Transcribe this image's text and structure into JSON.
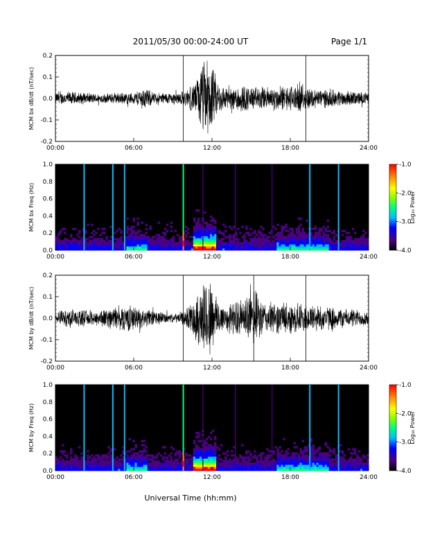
{
  "header": {
    "date_range": "2011/05/30  00:00-24:00 UT",
    "page": "Page 1/1"
  },
  "footer": {
    "xlabel": "Universal Time (hh:mm)"
  },
  "colorbar": {
    "label": "Log₁₀ Power",
    "ticks": [
      "-1.0",
      "-2.0",
      "-3.0",
      "-4.0"
    ],
    "range": [
      -4.0,
      -1.0
    ],
    "colormap": [
      "#000000",
      "#4b0082",
      "#0000ff",
      "#00bfff",
      "#00ff7f",
      "#7fff00",
      "#ffff00",
      "#ff8c00",
      "#ff0000"
    ]
  },
  "chart_data": [
    {
      "type": "line",
      "id": "bx-waveform",
      "ylabel": "MCM bx dB/dt (nT/sec)",
      "xlim": [
        0,
        24
      ],
      "ylim": [
        -0.2,
        0.2
      ],
      "x_ticks": [
        "00:00",
        "06:00",
        "12:00",
        "18:00",
        "24:00"
      ],
      "y_ticks": [
        "0.2",
        "0.1",
        "0.0",
        "-0.1",
        "-0.2"
      ],
      "vertical_lines_hours": [
        9.8,
        19.2
      ],
      "envelope": [
        {
          "x": 0.0,
          "a": 0.03
        },
        {
          "x": 1.0,
          "a": 0.035
        },
        {
          "x": 2.0,
          "a": 0.03
        },
        {
          "x": 3.0,
          "a": 0.025
        },
        {
          "x": 4.0,
          "a": 0.025
        },
        {
          "x": 5.0,
          "a": 0.03
        },
        {
          "x": 6.0,
          "a": 0.03
        },
        {
          "x": 6.8,
          "a": 0.06
        },
        {
          "x": 7.5,
          "a": 0.03
        },
        {
          "x": 9.0,
          "a": 0.03
        },
        {
          "x": 10.0,
          "a": 0.04
        },
        {
          "x": 10.8,
          "a": 0.09
        },
        {
          "x": 11.3,
          "a": 0.2
        },
        {
          "x": 11.8,
          "a": 0.2
        },
        {
          "x": 12.5,
          "a": 0.08
        },
        {
          "x": 13.5,
          "a": 0.05
        },
        {
          "x": 14.0,
          "a": 0.08
        },
        {
          "x": 15.0,
          "a": 0.06
        },
        {
          "x": 17.0,
          "a": 0.06
        },
        {
          "x": 18.5,
          "a": 0.07
        },
        {
          "x": 20.0,
          "a": 0.05
        },
        {
          "x": 22.0,
          "a": 0.04
        },
        {
          "x": 24.0,
          "a": 0.03
        }
      ]
    },
    {
      "type": "heatmap",
      "id": "bx-spectrogram",
      "ylabel": "MCM bx Freq (Hz)",
      "xlim": [
        0,
        24
      ],
      "ylim": [
        0,
        1.0
      ],
      "x_ticks": [
        "00:00",
        "06:00",
        "12:00",
        "18:00",
        "24:00"
      ],
      "y_ticks": [
        "1.0",
        "0.8",
        "0.6",
        "0.4",
        "0.2",
        "0.0"
      ],
      "bright_lines_hours": [
        2.2,
        4.4,
        5.3,
        9.8,
        19.5,
        21.7
      ],
      "dim_lines_hours": [
        11.3,
        13.8,
        16.6
      ]
    },
    {
      "type": "line",
      "id": "by-waveform",
      "ylabel": "MCM by dB/dt (nT/sec)",
      "xlim": [
        0,
        24
      ],
      "ylim": [
        -0.2,
        0.2
      ],
      "x_ticks": [
        "00:00",
        "06:00",
        "12:00",
        "18:00",
        "24:00"
      ],
      "y_ticks": [
        "0.2",
        "0.1",
        "0.0",
        "-0.1",
        "-0.2"
      ],
      "vertical_lines_hours": [
        9.8,
        15.2,
        19.2
      ],
      "envelope": [
        {
          "x": 0.0,
          "a": 0.03
        },
        {
          "x": 1.0,
          "a": 0.05
        },
        {
          "x": 2.0,
          "a": 0.04
        },
        {
          "x": 3.0,
          "a": 0.04
        },
        {
          "x": 4.0,
          "a": 0.05
        },
        {
          "x": 5.5,
          "a": 0.07
        },
        {
          "x": 6.5,
          "a": 0.05
        },
        {
          "x": 7.5,
          "a": 0.04
        },
        {
          "x": 9.0,
          "a": 0.02
        },
        {
          "x": 10.0,
          "a": 0.04
        },
        {
          "x": 10.8,
          "a": 0.12
        },
        {
          "x": 11.3,
          "a": 0.2
        },
        {
          "x": 11.9,
          "a": 0.2
        },
        {
          "x": 12.5,
          "a": 0.09
        },
        {
          "x": 13.0,
          "a": 0.07
        },
        {
          "x": 14.5,
          "a": 0.1
        },
        {
          "x": 15.2,
          "a": 0.15
        },
        {
          "x": 16.0,
          "a": 0.08
        },
        {
          "x": 18.0,
          "a": 0.08
        },
        {
          "x": 20.0,
          "a": 0.07
        },
        {
          "x": 22.0,
          "a": 0.05
        },
        {
          "x": 24.0,
          "a": 0.04
        }
      ]
    },
    {
      "type": "heatmap",
      "id": "by-spectrogram",
      "ylabel": "MCM by Freq (Hz)",
      "xlim": [
        0,
        24
      ],
      "ylim": [
        0,
        1.0
      ],
      "x_ticks": [
        "00:00",
        "06:00",
        "12:00",
        "18:00",
        "24:00"
      ],
      "y_ticks": [
        "1.0",
        "0.8",
        "0.6",
        "0.4",
        "0.2",
        "0.0"
      ],
      "bright_lines_hours": [
        2.2,
        4.4,
        5.3,
        9.8,
        19.5,
        21.7
      ],
      "dim_lines_hours": [
        11.3,
        13.8,
        16.6
      ]
    }
  ]
}
